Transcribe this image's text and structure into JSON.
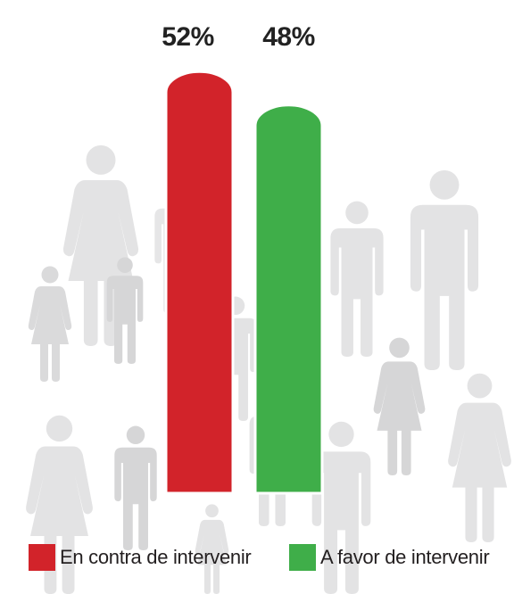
{
  "chart_data": {
    "type": "bar",
    "categories": [
      "En contra de intervenir",
      "A favor de intervenir"
    ],
    "values": [
      52,
      48
    ],
    "value_labels": [
      "52%",
      "48%"
    ],
    "colors": [
      "#d2232a",
      "#3fae49"
    ],
    "ylim": [
      0,
      100
    ],
    "grid": false,
    "legend_position": "bottom",
    "background_icon": "people-crowd-icon"
  },
  "legend": [
    {
      "label": "En contra de intervenir",
      "color": "#d2232a"
    },
    {
      "label": "A favor de intervenir",
      "color": "#3fae49"
    }
  ]
}
